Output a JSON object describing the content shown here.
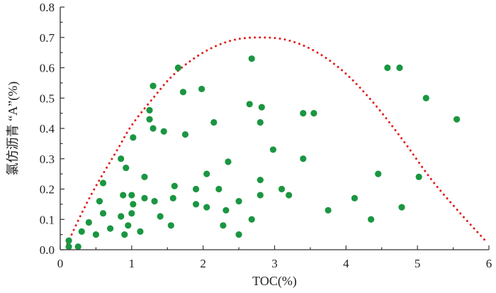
{
  "chart_data": {
    "type": "scatter",
    "xlabel": "TOC(%)",
    "ylabel": "氯仿沥青 “A”(%)",
    "xlim": [
      0,
      6
    ],
    "ylim": [
      0,
      0.8
    ],
    "xticks": [
      "0",
      "1",
      "2",
      "3",
      "4",
      "5",
      "6"
    ],
    "yticks": [
      "0.0",
      "0.1",
      "0.2",
      "0.3",
      "0.4",
      "0.5",
      "0.6",
      "0.7",
      "0.8"
    ],
    "grid": false,
    "legend": "none",
    "series": [
      {
        "marker_color": "#1a9641",
        "points": [
          [
            0.12,
            0.03
          ],
          [
            0.12,
            0.01
          ],
          [
            0.25,
            0.01
          ],
          [
            0.3,
            0.06
          ],
          [
            0.4,
            0.09
          ],
          [
            0.5,
            0.05
          ],
          [
            0.55,
            0.16
          ],
          [
            0.6,
            0.12
          ],
          [
            0.6,
            0.22
          ],
          [
            0.7,
            0.07
          ],
          [
            0.85,
            0.11
          ],
          [
            0.85,
            0.3
          ],
          [
            0.88,
            0.18
          ],
          [
            0.9,
            0.05
          ],
          [
            0.92,
            0.27
          ],
          [
            0.95,
            0.08
          ],
          [
            1.0,
            0.12
          ],
          [
            1.0,
            0.18
          ],
          [
            1.02,
            0.37
          ],
          [
            1.02,
            0.15
          ],
          [
            1.12,
            0.06
          ],
          [
            1.18,
            0.17
          ],
          [
            1.18,
            0.24
          ],
          [
            1.25,
            0.46
          ],
          [
            1.25,
            0.43
          ],
          [
            1.3,
            0.4
          ],
          [
            1.3,
            0.54
          ],
          [
            1.32,
            0.16
          ],
          [
            1.4,
            0.11
          ],
          [
            1.45,
            0.39
          ],
          [
            1.55,
            0.08
          ],
          [
            1.58,
            0.17
          ],
          [
            1.6,
            0.21
          ],
          [
            1.65,
            0.6
          ],
          [
            1.72,
            0.52
          ],
          [
            1.75,
            0.38
          ],
          [
            1.9,
            0.15
          ],
          [
            1.9,
            0.2
          ],
          [
            1.98,
            0.53
          ],
          [
            2.05,
            0.14
          ],
          [
            2.05,
            0.25
          ],
          [
            2.15,
            0.42
          ],
          [
            2.22,
            0.2
          ],
          [
            2.28,
            0.08
          ],
          [
            2.32,
            0.13
          ],
          [
            2.35,
            0.29
          ],
          [
            2.5,
            0.05
          ],
          [
            2.5,
            0.16
          ],
          [
            2.65,
            0.48
          ],
          [
            2.68,
            0.1
          ],
          [
            2.68,
            0.63
          ],
          [
            2.8,
            0.42
          ],
          [
            2.8,
            0.18
          ],
          [
            2.8,
            0.23
          ],
          [
            2.82,
            0.47
          ],
          [
            2.98,
            0.33
          ],
          [
            3.1,
            0.2
          ],
          [
            3.2,
            0.18
          ],
          [
            3.4,
            0.45
          ],
          [
            3.4,
            0.3
          ],
          [
            3.55,
            0.45
          ],
          [
            3.75,
            0.13
          ],
          [
            4.12,
            0.17
          ],
          [
            4.35,
            0.1
          ],
          [
            4.45,
            0.25
          ],
          [
            4.58,
            0.6
          ],
          [
            4.75,
            0.6
          ],
          [
            4.78,
            0.14
          ],
          [
            5.02,
            0.24
          ],
          [
            5.12,
            0.5
          ],
          [
            5.55,
            0.43
          ]
        ]
      }
    ],
    "envelope_curve": {
      "style": "dotted",
      "color": "#e0201b",
      "points": [
        [
          0.1,
          0.02
        ],
        [
          0.3,
          0.12
        ],
        [
          0.5,
          0.21
        ],
        [
          0.8,
          0.33
        ],
        [
          1.0,
          0.41
        ],
        [
          1.3,
          0.5
        ],
        [
          1.6,
          0.58
        ],
        [
          2.0,
          0.65
        ],
        [
          2.4,
          0.69
        ],
        [
          2.8,
          0.7
        ],
        [
          3.2,
          0.69
        ],
        [
          3.6,
          0.65
        ],
        [
          4.0,
          0.58
        ],
        [
          4.4,
          0.48
        ],
        [
          4.8,
          0.36
        ],
        [
          5.2,
          0.23
        ],
        [
          5.6,
          0.12
        ],
        [
          5.95,
          0.03
        ]
      ]
    }
  }
}
